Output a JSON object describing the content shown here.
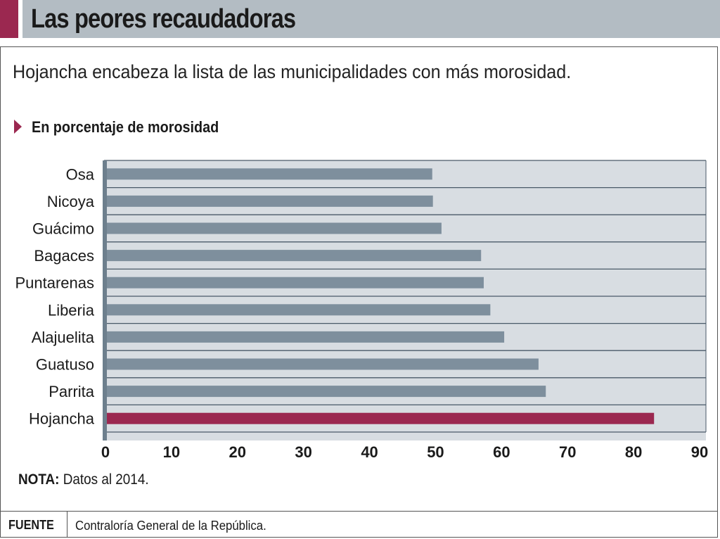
{
  "header": {
    "title": "Las peores recaudadoras"
  },
  "subtitle": "Hojancha encabeza la lista de las municipalidades con más morosidad.",
  "unit_label": "En porcentaje de morosidad",
  "note": {
    "label": "NOTA:",
    "text": " Datos al 2014."
  },
  "source": {
    "label": "FUENTE",
    "text": "Contraloría General de la República."
  },
  "colors": {
    "accent": "#9b2850",
    "bar": "#7e8f9d",
    "highlight_bar": "#9b2850",
    "plot_background": "#d8dde2",
    "header_background": "#b3bcc3"
  },
  "chart_data": {
    "type": "bar",
    "orientation": "horizontal",
    "title": "",
    "xlabel": "En porcentaje de morosidad",
    "ylabel": "",
    "categories": [
      "Osa",
      "Nicoya",
      "Guácimo",
      "Bagaces",
      "Puntarenas",
      "Liberia",
      "Alajuelita",
      "Guatuso",
      "Parrita",
      "Hojancha"
    ],
    "values": [
      49.5,
      49.6,
      50.9,
      56.9,
      57.3,
      58.3,
      60.4,
      65.6,
      66.7,
      83.1
    ],
    "highlight": "Hojancha",
    "xlim": [
      0,
      90
    ],
    "xticks": [
      0,
      10,
      20,
      30,
      40,
      50,
      60,
      70,
      80,
      90
    ],
    "grid": true
  }
}
